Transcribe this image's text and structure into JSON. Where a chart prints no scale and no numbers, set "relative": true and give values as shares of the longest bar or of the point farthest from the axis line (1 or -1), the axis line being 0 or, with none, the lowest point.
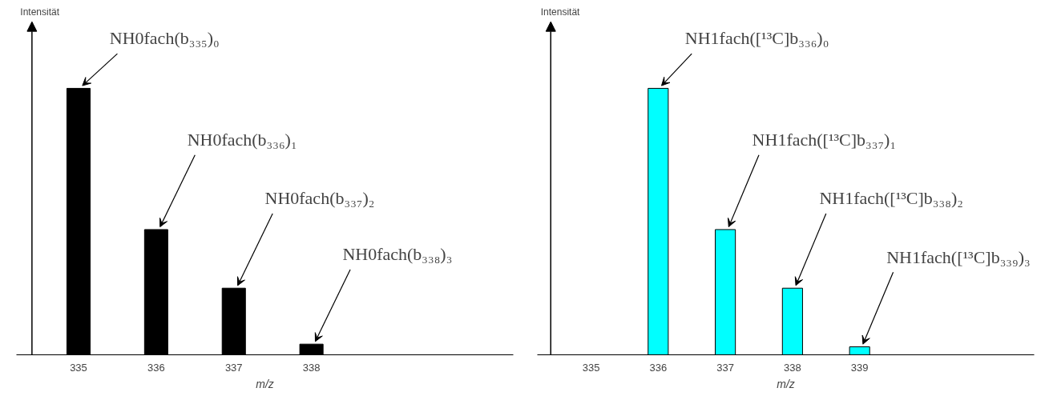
{
  "chart_data": [
    {
      "type": "bar",
      "relative": true,
      "ylabel": "Intensität",
      "xlabel": "m/z",
      "categories": [
        "335",
        "336",
        "337",
        "338"
      ],
      "color": "#000000",
      "values": [
        1,
        0.47,
        0.25,
        0.04
      ],
      "annotations": [
        {
          "text": "NH0fach(b₃₃₅)₀",
          "x": "335",
          "y": 1
        },
        {
          "text": "NH0fach(b₃₃₆)₁",
          "x": "336",
          "y": 0.47
        },
        {
          "text": "NH0fach(b₃₃₇)₂",
          "x": "337",
          "y": 0.25
        },
        {
          "text": "NH0fach(b₃₃₈)₃",
          "x": "338",
          "y": 0.04
        }
      ]
    },
    {
      "type": "bar",
      "relative": true,
      "ylabel": "Intensität",
      "xlabel": "m/z",
      "categories": [
        "335",
        "336",
        "337",
        "338",
        "339"
      ],
      "color": "#00ffff",
      "values": [
        null,
        1,
        0.47,
        0.25,
        0.03
      ],
      "annotations": [
        {
          "text": "NH1fach([¹³C]b₃₃₆)₀",
          "x": "336",
          "y": 1
        },
        {
          "text": "NH1fach([¹³C]b₃₃₇)₁",
          "x": "337",
          "y": 0.47
        },
        {
          "text": "NH1fach([¹³C]b₃₃₈)₂",
          "x": "338",
          "y": 0.25
        },
        {
          "text": "NH1fach([¹³C]b₃₃₉)₃",
          "x": "339",
          "y": 0.03
        }
      ]
    }
  ]
}
